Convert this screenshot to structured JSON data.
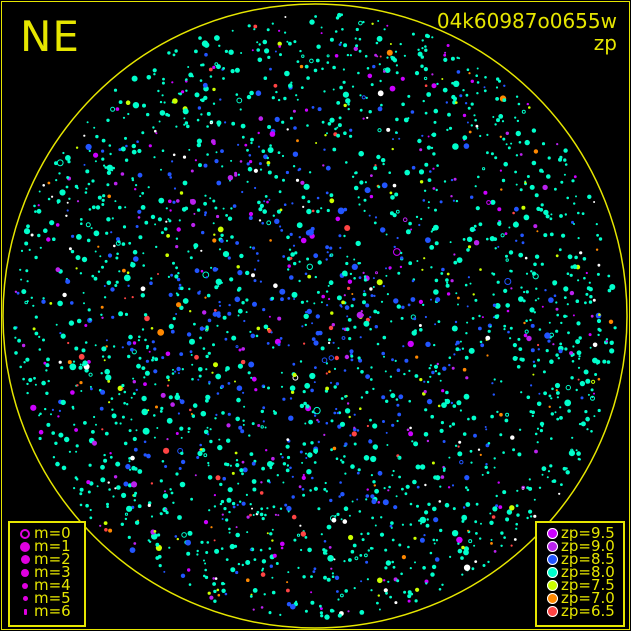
{
  "header": {
    "direction": "NE",
    "frame_id": "04k60987o0655w",
    "mode": "zp"
  },
  "colors": {
    "frame": "#e6e600",
    "background": "#000000"
  },
  "chart_data": {
    "type": "scatter",
    "title": "04k60987o0655w",
    "subtitle": "zp",
    "projection": "all-sky circle",
    "legend_magnitude": [
      {
        "label": "m=0",
        "style": "ring"
      },
      {
        "label": "m=1",
        "style": "dot"
      },
      {
        "label": "m=2",
        "style": "dot"
      },
      {
        "label": "m=3",
        "style": "dot"
      },
      {
        "label": "m=4",
        "style": "dot"
      },
      {
        "label": "m=5",
        "style": "dot"
      },
      {
        "label": "m=6",
        "style": "dot"
      }
    ],
    "legend_zp": [
      {
        "label": "zp=9.5",
        "color": "#cc00ff"
      },
      {
        "label": "zp=9.0",
        "color": "#bb22ee"
      },
      {
        "label": "zp=8.5",
        "color": "#2255ff"
      },
      {
        "label": "zp=8.0",
        "color": "#00ffcc"
      },
      {
        "label": "zp=7.5",
        "color": "#ccff00"
      },
      {
        "label": "zp=7.0",
        "color": "#ff8800"
      },
      {
        "label": "zp=6.5",
        "color": "#ff4444"
      }
    ],
    "legend_placement": [
      "bottom-left",
      "bottom-right"
    ]
  }
}
